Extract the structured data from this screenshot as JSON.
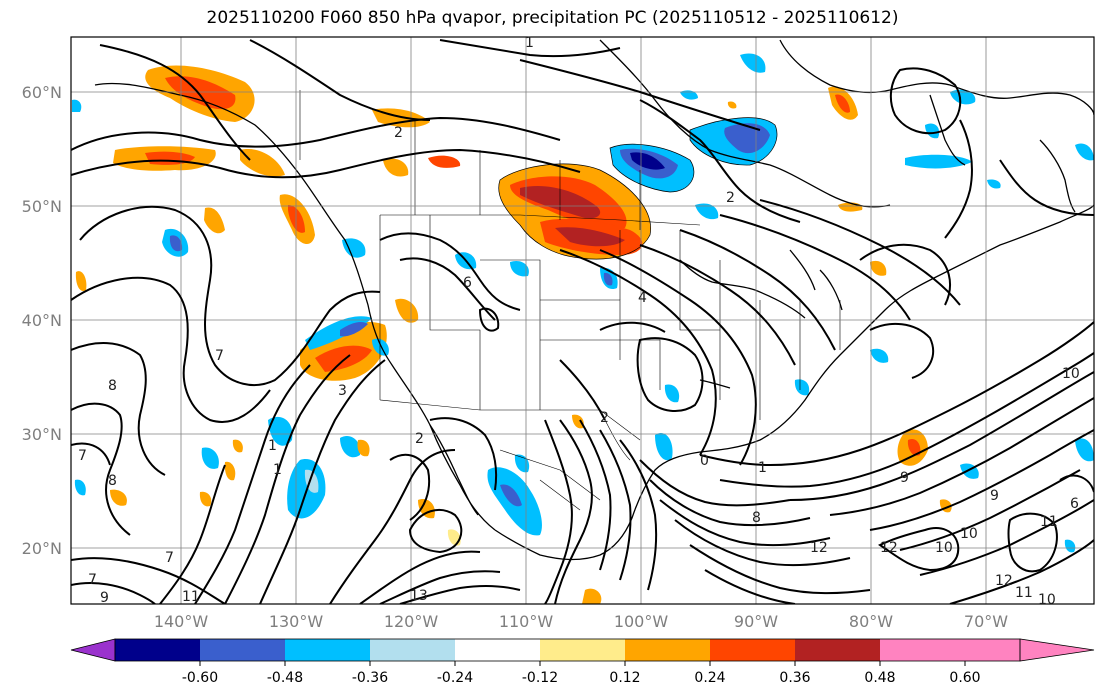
{
  "title": "2025110200 F060 850 hPa qvapor, precipitation PC (2025110512 - 2025110612)",
  "lat_labels": [
    "60°N",
    "50°N",
    "40°N",
    "30°N",
    "20°N"
  ],
  "lon_labels": [
    "140°W",
    "130°W",
    "120°W",
    "110°W",
    "100°W",
    "90°W",
    "80°W",
    "70°W"
  ],
  "colorbar": {
    "colors": [
      "#9a32cd",
      "#00008b",
      "#3a5fcd",
      "#00bfff",
      "#b2dfee",
      "#ffffff",
      "#ffec8b",
      "#ffa500",
      "#ff4500",
      "#b22222",
      "#ff83c0",
      "#ff83c0"
    ],
    "under_color": "#9a32cd",
    "over_color": "#ff83c0",
    "tick_labels": [
      "-0.60",
      "-0.48",
      "-0.36",
      "-0.24",
      "-0.12",
      "0.12",
      "0.24",
      "0.36",
      "0.48",
      "0.60"
    ]
  },
  "contour_labels": [
    "1",
    "2",
    "2",
    "6",
    "7",
    "8",
    "3",
    "2",
    "1",
    "0",
    "1",
    "2",
    "4",
    "8",
    "12",
    "10",
    "9",
    "11",
    "12",
    "13",
    "7",
    "9",
    "10",
    "11",
    "6",
    "7",
    "8",
    "10",
    "9",
    "12",
    "11",
    "10",
    "1",
    "7"
  ]
}
